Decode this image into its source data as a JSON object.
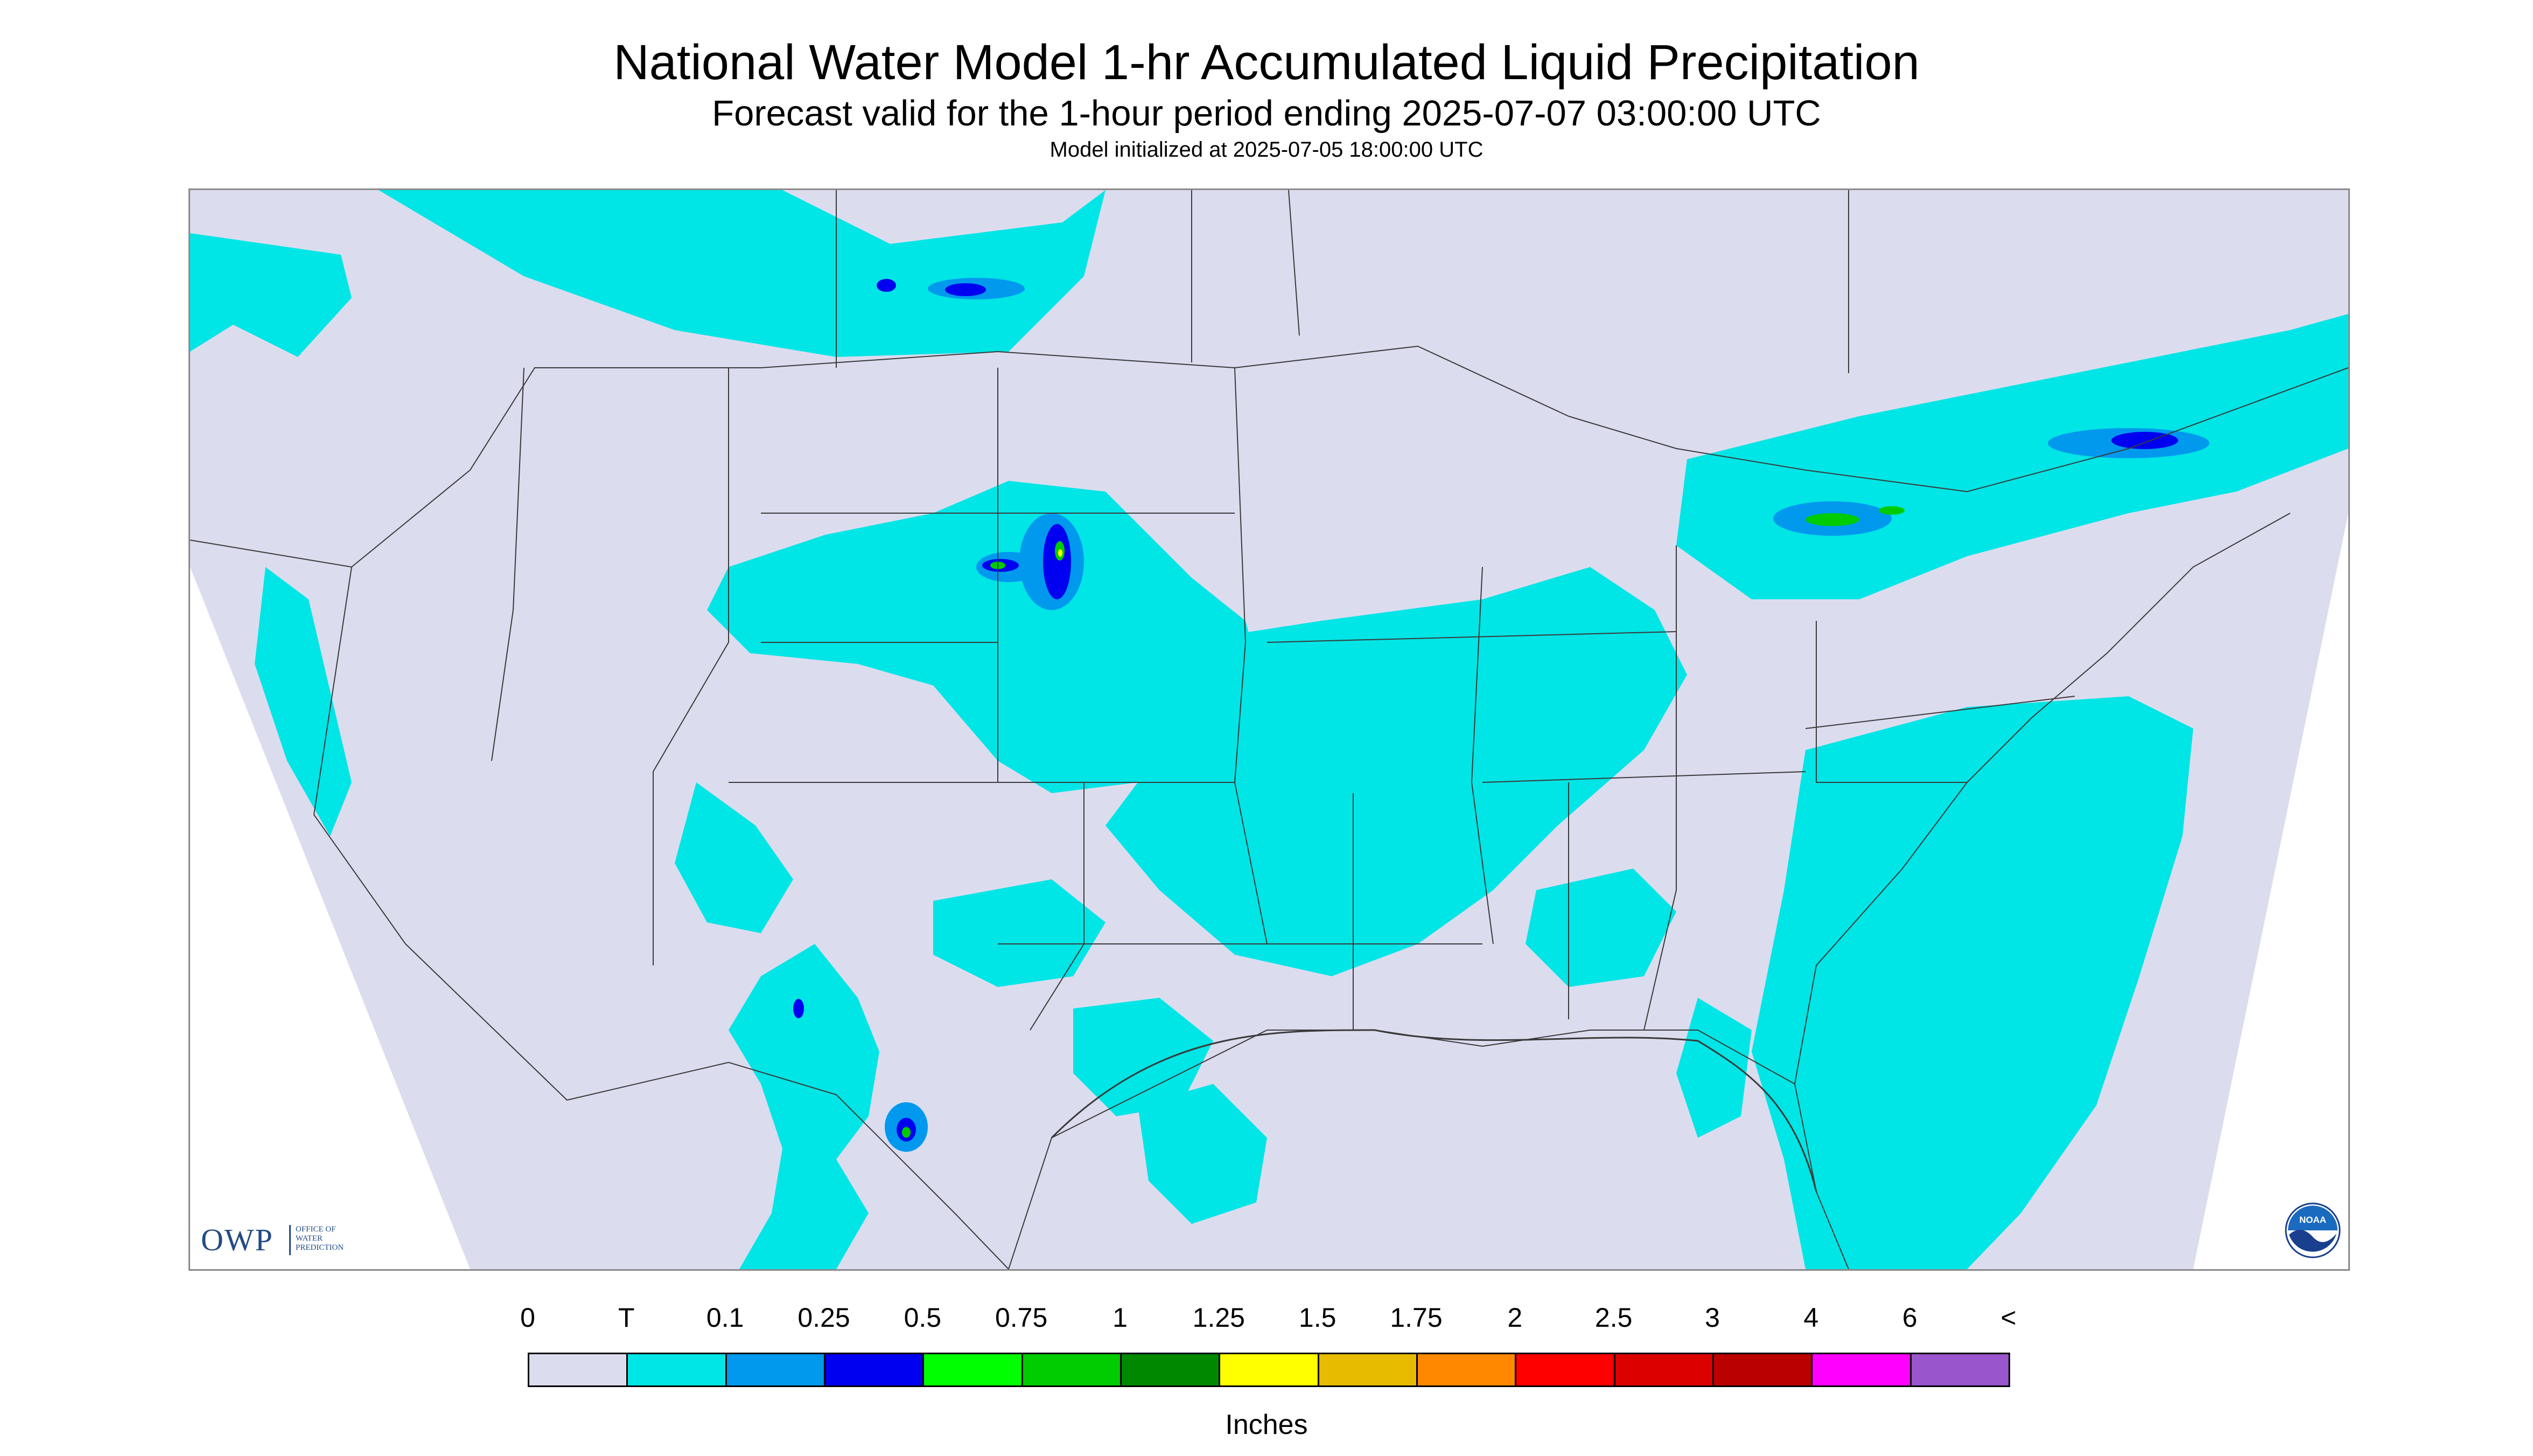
{
  "title": "National Water Model 1-hr Accumulated Liquid Precipitation",
  "subtitle": "Forecast valid for the 1-hour period ending 2025-07-07 03:00:00 UTC",
  "init_text": "Model initialized at 2025-07-05 18:00:00 UTC",
  "logos": {
    "owp_letters": "OWP",
    "owp_subtext": "OFFICE OF\nWATER\nPREDICTION",
    "noaa_text": "NOAA"
  },
  "colors": {
    "no_data_background": "#dcdcef",
    "trace": "#00e5e5",
    "boundary_lines": "#3a3a3a"
  },
  "legend": {
    "unit": "Inches",
    "labels": [
      "0",
      "T",
      "0.1",
      "0.25",
      "0.5",
      "0.75",
      "1",
      "1.25",
      "1.5",
      "1.75",
      "2",
      "2.5",
      "3",
      "4",
      "6",
      "<"
    ],
    "colors": [
      "#dcdcef",
      "#00e5e5",
      "#0099ee",
      "#0000f0",
      "#00ff00",
      "#00cc00",
      "#008800",
      "#ffff00",
      "#e6bb00",
      "#ff8800",
      "#ff0000",
      "#dd0000",
      "#bb0000",
      "#ff00ff",
      "#9955cc"
    ]
  }
}
